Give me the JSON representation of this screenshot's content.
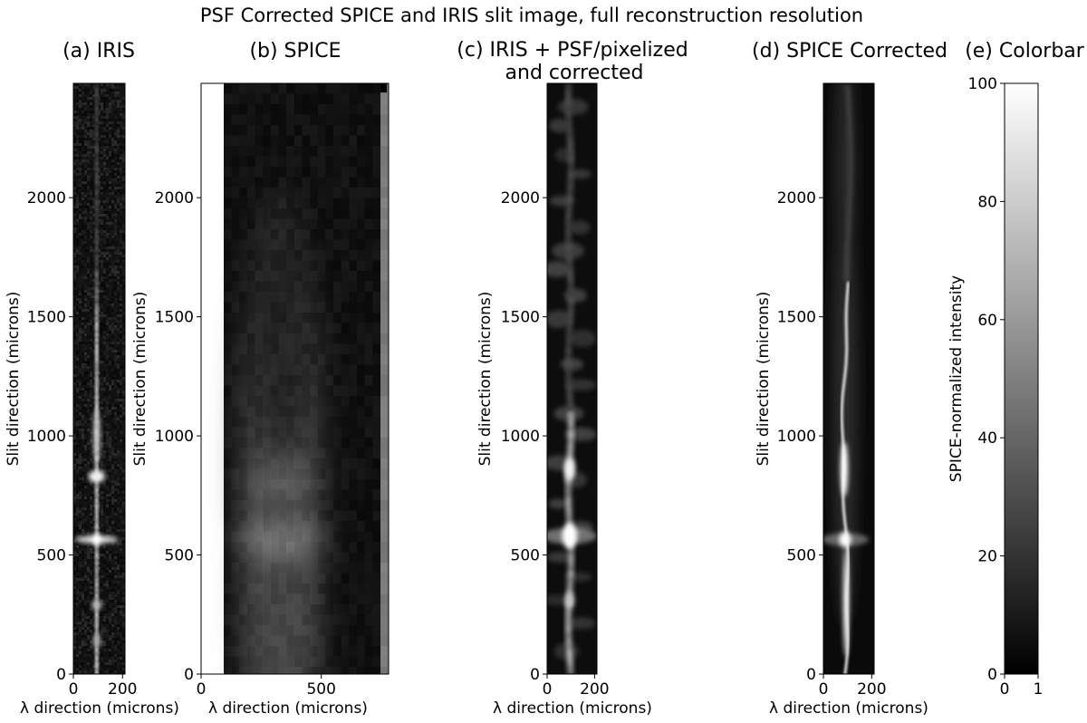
{
  "figure": {
    "suptitle": "PSF Corrected SPICE and IRIS slit image, full reconstruction resolution"
  },
  "chart_data": [
    {
      "type": "heatmap",
      "title": "(a) IRIS",
      "xlabel": "λ direction (microns)",
      "ylabel": "Slit direction (microns)",
      "xlim": [
        0,
        210
      ],
      "ylim": [
        0,
        2480
      ],
      "xticks": [
        "0",
        "200"
      ],
      "yticks": [
        "0",
        "500",
        "1000",
        "1500",
        "2000"
      ],
      "colormap": "gray",
      "features": {
        "line_center_x": 95,
        "bright_spots_y": [
          565,
          830,
          290,
          140
        ],
        "line_fades_above_y": 1550
      }
    },
    {
      "type": "heatmap",
      "title": "(b) SPICE",
      "xlabel": "λ direction (microns)",
      "ylabel": "Slit direction (microns)",
      "xlim": [
        0,
        780
      ],
      "ylim": [
        0,
        2480
      ],
      "xticks": [
        "0",
        "500"
      ],
      "yticks": [
        "0",
        "500",
        "1000",
        "1500",
        "2000"
      ],
      "colormap": "gray",
      "features": {
        "line_center_x": 330,
        "bright_spots_y": [
          565,
          810
        ],
        "white_band_x": [
          0,
          90
        ]
      }
    },
    {
      "type": "heatmap",
      "title": "(c) IRIS + PSF/pixelized\nand corrected",
      "title_lines": [
        "(c) IRIS + PSF/pixelized",
        "and corrected"
      ],
      "xlabel": "λ direction (microns)",
      "ylabel": "Slit direction (microns)",
      "xlim": [
        0,
        210
      ],
      "ylim": [
        0,
        2480
      ],
      "xticks": [
        "0",
        "200"
      ],
      "yticks": [
        "0",
        "500",
        "1000",
        "1500",
        "2000"
      ],
      "colormap": "gray",
      "features": {
        "line_center_x": 95,
        "bright_spots_y": [
          580,
          860,
          310
        ],
        "line_fades_above_y": 1100
      }
    },
    {
      "type": "heatmap",
      "title": "(d) SPICE Corrected",
      "xlabel": "λ direction (microns)",
      "ylabel": "Slit direction (microns)",
      "xlim": [
        0,
        210
      ],
      "ylim": [
        0,
        2480
      ],
      "xticks": [
        "0",
        "200"
      ],
      "yticks": [
        "0",
        "500",
        "1000",
        "1500",
        "2000"
      ],
      "colormap": "gray",
      "features": {
        "line_center_x": 90,
        "bright_spots_y": [
          565,
          860
        ],
        "line_fades_above_y": 1650
      }
    },
    {
      "type": "heatmap",
      "title": "(e) Colorbar",
      "ylabel": "SPICE-normalized intensity",
      "xlim": [
        0,
        1
      ],
      "ylim": [
        0,
        100
      ],
      "xticks": [
        "0",
        "1"
      ],
      "yticks": [
        "0",
        "20",
        "40",
        "60",
        "80",
        "100"
      ],
      "colormap": "gray"
    }
  ]
}
